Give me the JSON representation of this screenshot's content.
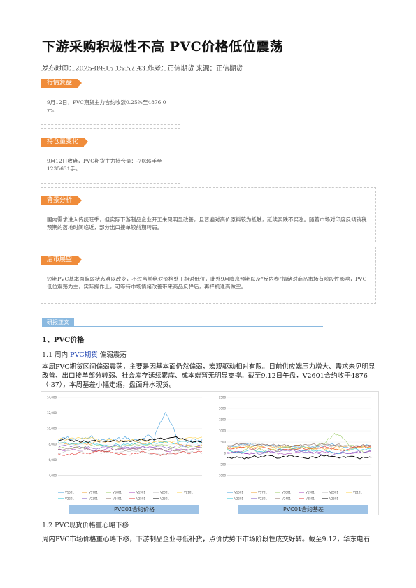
{
  "article": {
    "title": "下游采购积极性不高 PVC价格低位震荡",
    "meta": "发布时间：2025-09-15 15:57:43 作者：正信期货 来源：正信期货"
  },
  "boxes": {
    "market": {
      "tag": "行情复盘",
      "text": "9月12日，PVC期货主力合约收涨0.25%至4876.0元。"
    },
    "position": {
      "tag": "持仓量变化",
      "text": "9月12日收盘，PVC期货主力持仓量：-7036手至1235631手。"
    },
    "background": {
      "tag": "背景分析",
      "text": "国内需求进入传统旺季，但实际下游制品企业开工未见明显改善，且普遍对高价原料较为抵触，延续买跌不买涨。随着市场对印度反倾销税预期的落地时间临近，部分出口接单较前期转弱。"
    },
    "outlook": {
      "tag": "后市展望",
      "text": "短期PVC基本面偏弱状态难以改变，不过当前绝对价格处于相对低位，此外9月降息预期以及“反内卷”情绪对商品市场有阶段性影响，PVC低位震荡为主，实际操作上，可等待市场情绪改善带来商品反弹后，再择机逢高做空。"
    }
  },
  "body": {
    "section_tag": "研报正文",
    "h1": "1、PVC价格",
    "h2_prefix": "1.1 周内",
    "h2_link": "PVC期货",
    "h2_suffix": "偏弱震荡",
    "para1": "本周PVC期货区间偏弱震荡，主要是因基本面仍然偏弱，宏观驱动相对有限。目前供应端压力增大、需求未见明显改善、出口接单部分转弱、社会库存延续累库、成本端暂无明显支撑。截至9.12日午盘，V2601合约收于4876（-37），本周基差小幅走缩，盘面升水现货。",
    "h2b": "1.2 PVC现货价格重心略下移",
    "para2": "周内PVC市场价格重心略下移，下游制品企业寻低补货，点价优势下市场阶段性成交好转。截至9.12，华东电石"
  },
  "charts": {
    "left": {
      "caption": "PVC01合约价格",
      "y_ticks": [
        "14,000",
        "12,000",
        "10,000",
        "8,000",
        "6,000",
        "4,000"
      ],
      "legend": [
        "V1601",
        "V1701",
        "V1801",
        "V1901",
        "V2001",
        "V2101",
        "V2201",
        "V2301",
        "V2401",
        "V2501",
        "V2601"
      ]
    },
    "right": {
      "caption": "PVC01合约基差",
      "y_ticks": [
        "2500",
        "2000",
        "1500",
        "1000",
        "500",
        "0",
        "-500",
        "-1000"
      ],
      "legend": [
        "V1601",
        "V1701",
        "V1801",
        "V1901",
        "V2001",
        "V2101",
        "V2201",
        "V2301",
        "V2401",
        "V2501",
        "V2601"
      ]
    },
    "series_colors": [
      "#4aa3df",
      "#f0a030",
      "#9ccc65",
      "#ab47bc",
      "#c0c0c0",
      "#ffd54f",
      "#26c6da",
      "#7e57c2",
      "#8d6e63",
      "#e53935",
      "#000000"
    ]
  }
}
